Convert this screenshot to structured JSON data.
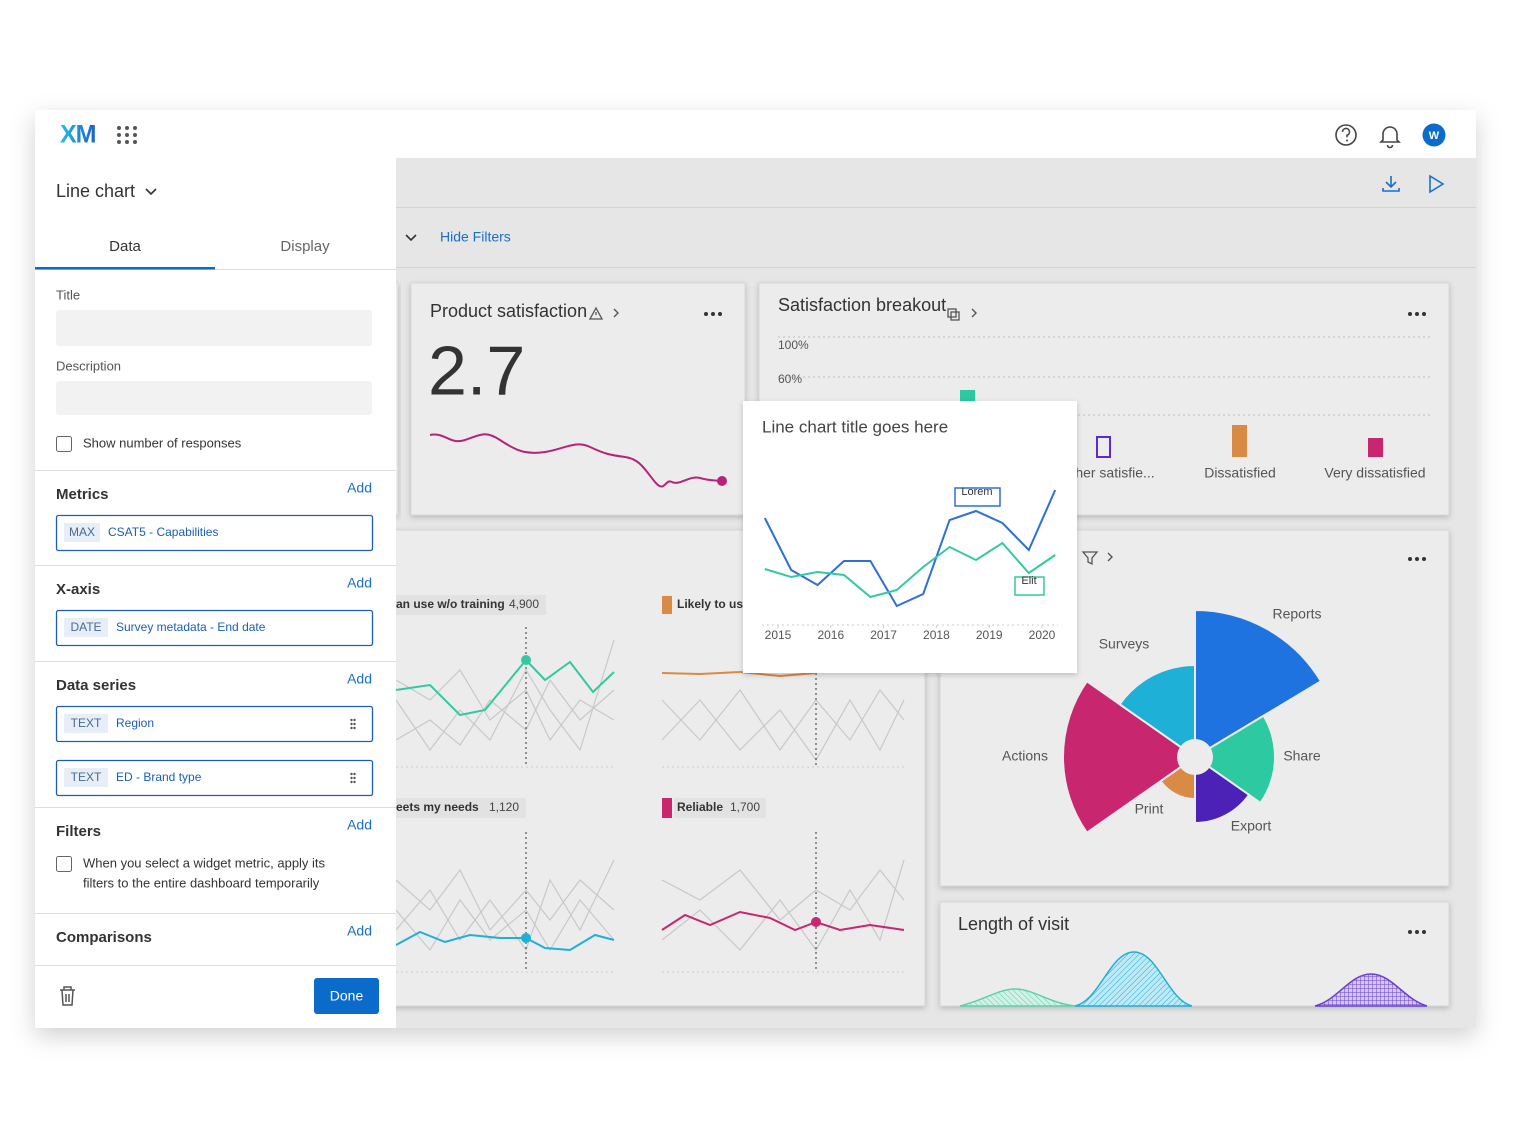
{
  "header": {
    "logo": "XM",
    "avatar": "W"
  },
  "panel": {
    "title": "Line chart",
    "tabs": [
      "Data",
      "Display"
    ],
    "title_label": "Title",
    "description_label": "Description",
    "show_responses": "Show number of responses",
    "sections": [
      {
        "name": "Metrics",
        "action": "Add",
        "fields": [
          {
            "tag": "MAX",
            "label": "CSAT5 - Capabilities"
          }
        ]
      },
      {
        "name": "X-axis",
        "action": "Add",
        "fields": [
          {
            "tag": "DATE",
            "label": "Survey metadata - End date"
          }
        ]
      },
      {
        "name": "Data series",
        "action": "Add",
        "fields": [
          {
            "tag": "TEXT",
            "label": "Region"
          },
          {
            "tag": "TEXT",
            "label": "ED - Brand type"
          }
        ]
      },
      {
        "name": "Filters",
        "action": "Add",
        "note_lines": [
          "When you select a widget metric, apply its",
          "filters to the entire dashboard temporarily"
        ]
      },
      {
        "name": "Comparisons",
        "action": "Add"
      }
    ],
    "done": "Done"
  },
  "dashboard": {
    "hide_filters": "Hide Filters",
    "product_satisfaction": {
      "title": "Product satisfaction",
      "value": 2.7
    },
    "breakout": {
      "title": "Satisfaction breakout",
      "ticks": [
        "100%",
        "60%"
      ],
      "categories": [
        "her satisfie...",
        "Dissatisfied",
        "Very dissatisfied"
      ]
    },
    "small_multiples": [
      {
        "label": "an use w/o training",
        "value": "4,900"
      },
      {
        "label": "Likely to us"
      },
      {
        "label": "eets my needs",
        "value": "1,120"
      },
      {
        "label": "Reliable",
        "value": "1,700"
      }
    ],
    "polar_labels": [
      "Reports",
      "Surveys",
      "Actions",
      "Share",
      "Print",
      "Export"
    ],
    "length_of_visit": {
      "title": "Length of visit"
    }
  },
  "chart_data": {
    "type": "line",
    "title": "Line chart title goes here",
    "x": [
      2014.75,
      2015.25,
      2015.75,
      2016.25,
      2016.75,
      2017.25,
      2017.75,
      2018.25,
      2018.75,
      2019.25,
      2019.75,
      2020.25
    ],
    "xticks": [
      2015,
      2016,
      2017,
      2018,
      2019,
      2020
    ],
    "series": [
      {
        "color": "#2f6fd6",
        "values": [
          107,
          55,
          40,
          64,
          64,
          19,
          31,
          105,
          114,
          102,
          75,
          135
        ]
      },
      {
        "color": "#33c9a0",
        "values": [
          56,
          48,
          53,
          50,
          28,
          35,
          58,
          78,
          65,
          82,
          52,
          70
        ]
      }
    ],
    "annotations": [
      "Lorem",
      "Elit"
    ]
  }
}
